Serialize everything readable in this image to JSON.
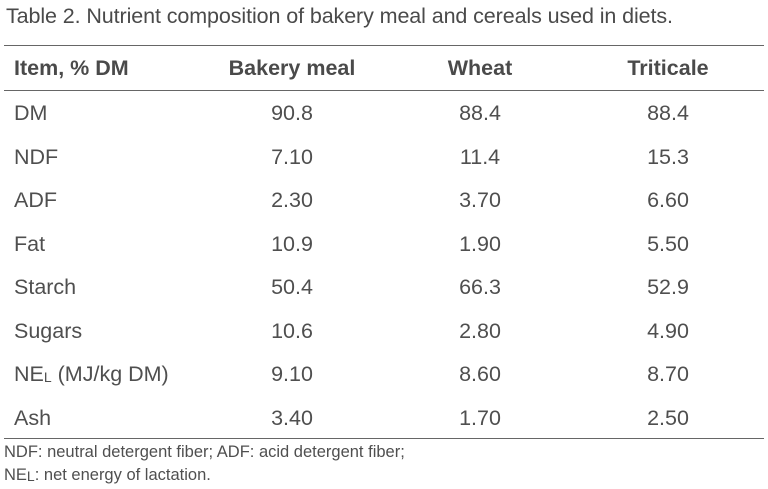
{
  "caption": "Table 2. Nutrient composition of bakery meal and cereals used in diets.",
  "table": {
    "headers": [
      "Item, % DM",
      "Bakery meal",
      "Wheat",
      "Triticale"
    ],
    "rows": [
      {
        "item": "DM",
        "item_sub": "",
        "item_suffix": "",
        "values": [
          "90.8",
          "88.4",
          "88.4"
        ]
      },
      {
        "item": "NDF",
        "item_sub": "",
        "item_suffix": "",
        "values": [
          "7.10",
          "11.4",
          "15.3"
        ]
      },
      {
        "item": "ADF",
        "item_sub": "",
        "item_suffix": "",
        "values": [
          "2.30",
          "3.70",
          "6.60"
        ]
      },
      {
        "item": "Fat",
        "item_sub": "",
        "item_suffix": "",
        "values": [
          "10.9",
          "1.90",
          "5.50"
        ]
      },
      {
        "item": "Starch",
        "item_sub": "",
        "item_suffix": "",
        "values": [
          "50.4",
          "66.3",
          "52.9"
        ]
      },
      {
        "item": "Sugars",
        "item_sub": "",
        "item_suffix": "",
        "values": [
          "10.6",
          "2.80",
          "4.90"
        ]
      },
      {
        "item": "NE",
        "item_sub": "L",
        "item_suffix": " (MJ/kg DM)",
        "values": [
          "9.10",
          "8.60",
          "8.70"
        ]
      },
      {
        "item": "Ash",
        "item_sub": "",
        "item_suffix": "",
        "values": [
          "3.40",
          "1.70",
          "2.50"
        ]
      }
    ]
  },
  "footnotes": {
    "line1": "NDF: neutral detergent fiber; ADF: acid detergent fiber;",
    "line2_abbrev": "NE",
    "line2_sub": "L",
    "line2_text": ": net energy of lactation."
  }
}
